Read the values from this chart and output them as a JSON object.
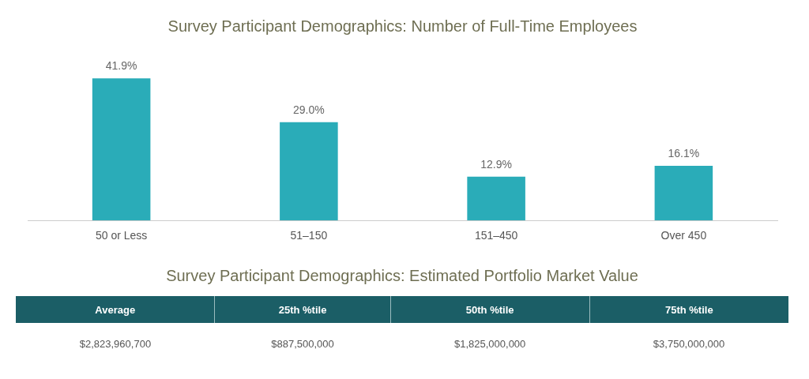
{
  "chart_data": [
    {
      "type": "bar",
      "title": "Survey Participant Demographics: Number of Full-Time Employees",
      "categories": [
        "50 or Less",
        "51–150",
        "151–450",
        "Over 450"
      ],
      "values": [
        41.9,
        29.0,
        12.9,
        16.1
      ],
      "value_labels": [
        "41.9%",
        "29.0%",
        "12.9%",
        "16.1%"
      ],
      "color": "#2aacb8",
      "grid": false,
      "legend": false
    },
    {
      "type": "other",
      "title": "Survey Participant Demographics: Estimated Portfolio Market Value",
      "annotations": [
        "Average",
        "25th %tile",
        "50th %tile",
        "75th %tile",
        "$2,823,960,700",
        "$887,500,000",
        "$1,825,000,000",
        "$3,750,000,000"
      ]
    }
  ]
}
